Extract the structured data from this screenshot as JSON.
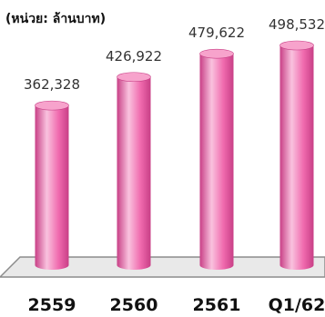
{
  "chart_data": {
    "type": "bar",
    "unit_label": "(หน่วย: ล้านบาท)",
    "categories": [
      "2559",
      "2560",
      "2561",
      "Q1/62"
    ],
    "values": [
      362328,
      426922,
      479622,
      498532
    ],
    "value_labels": [
      "362,328",
      "426,922",
      "479,622",
      "498,532"
    ],
    "bar_style": "3d-cylinder",
    "grid": false,
    "legend": "none"
  },
  "colors": {
    "bar_fill": "#f06aae",
    "bar_highlight": "#f9c2de",
    "bar_shadow": "#c83f86",
    "bar_top": "#f7a3cc",
    "floor_fill": "#e9e9e9",
    "floor_stroke": "#8c8c8c"
  }
}
